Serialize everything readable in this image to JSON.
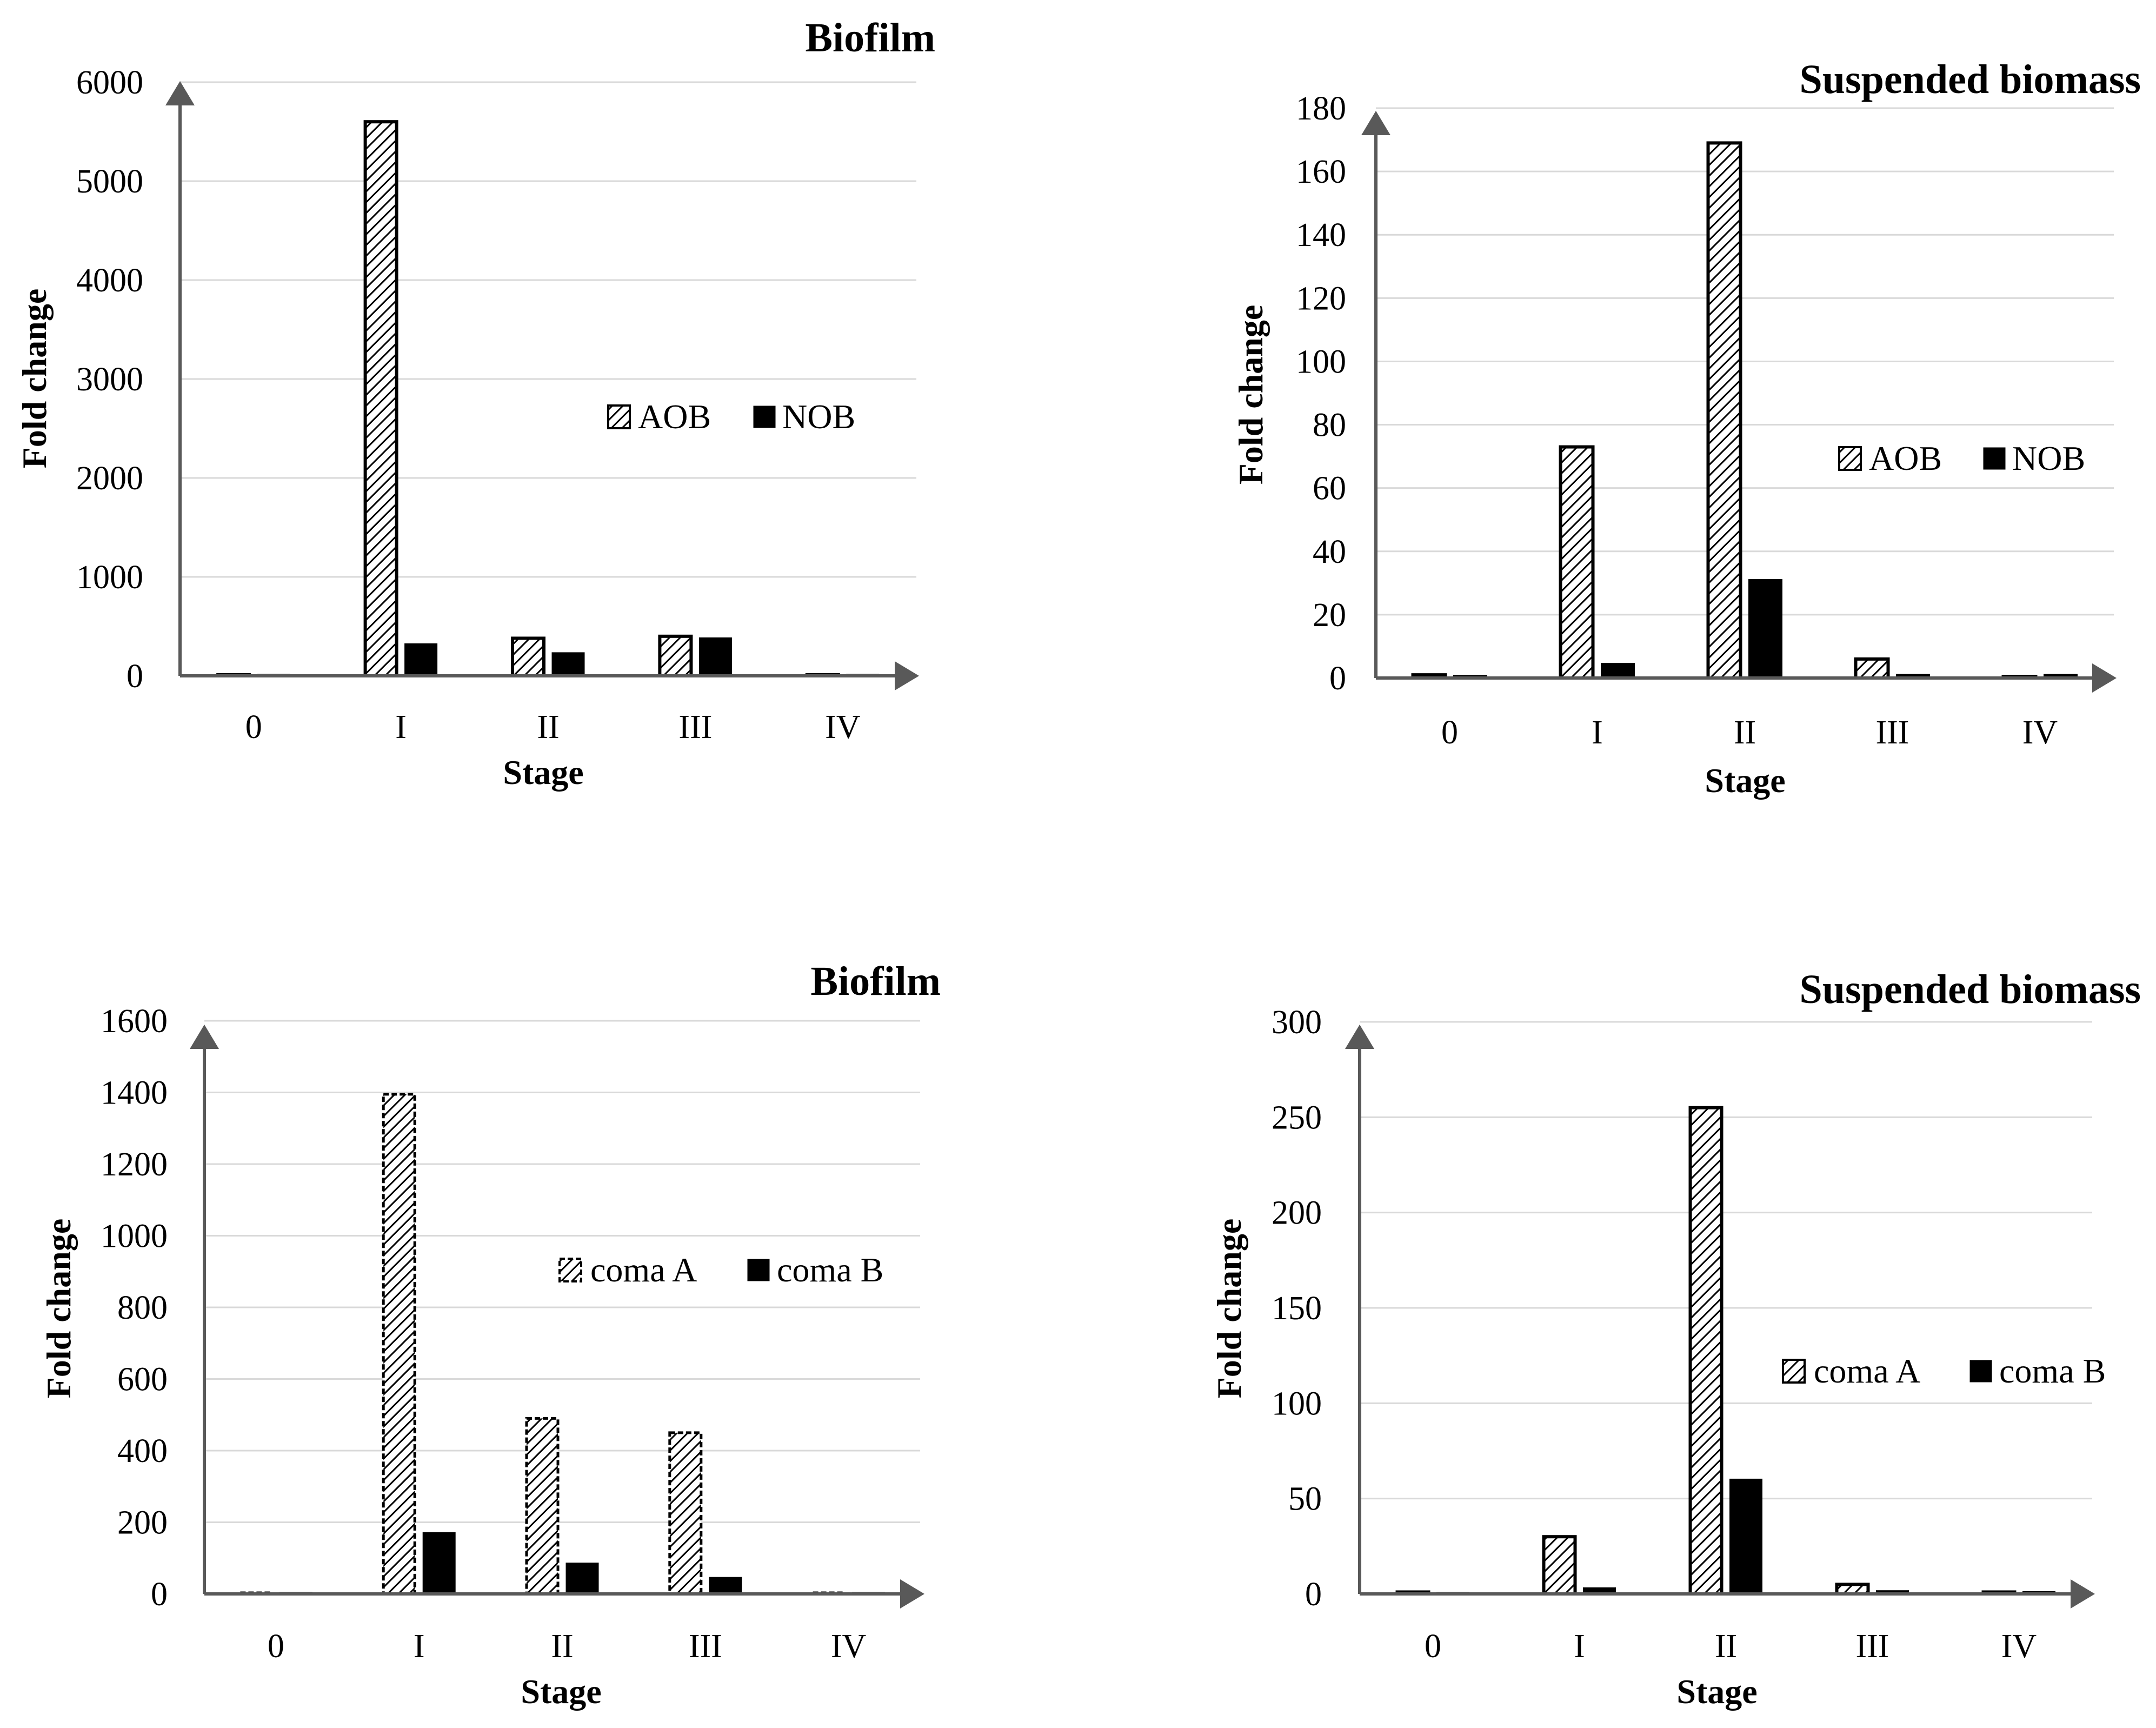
{
  "chart_data": [
    {
      "type": "bar",
      "title": "Biofilm",
      "xlabel": "Stage",
      "ylabel": "Fold change",
      "categories": [
        "0",
        "I",
        "II",
        "III",
        "IV"
      ],
      "ylim": [
        0,
        6000
      ],
      "yticks": [
        0,
        1000,
        2000,
        3000,
        4000,
        5000,
        6000
      ],
      "legend_position": "right-middle",
      "hatch_style": "solid-border",
      "series": [
        {
          "name": "AOB",
          "style": "hatched",
          "values": [
            1,
            5600,
            380,
            400,
            1
          ]
        },
        {
          "name": "NOB",
          "style": "solid",
          "values": [
            1,
            320,
            230,
            380,
            1
          ]
        }
      ]
    },
    {
      "type": "bar",
      "title": "Suspended biomass",
      "xlabel": "Stage",
      "ylabel": "Fold change",
      "categories": [
        "0",
        "I",
        "II",
        "III",
        "IV"
      ],
      "ylim": [
        0,
        180
      ],
      "yticks": [
        0,
        20,
        40,
        60,
        80,
        100,
        120,
        140,
        160,
        180
      ],
      "legend_position": "right-middle",
      "hatch_style": "solid-border",
      "series": [
        {
          "name": "AOB",
          "style": "hatched",
          "values": [
            1,
            73,
            169,
            6,
            0.5
          ]
        },
        {
          "name": "NOB",
          "style": "solid",
          "values": [
            0.7,
            4.5,
            31,
            1,
            1
          ]
        }
      ]
    },
    {
      "type": "bar",
      "title": "Biofilm",
      "xlabel": "Stage",
      "ylabel": "Fold change",
      "categories": [
        "0",
        "I",
        "II",
        "III",
        "IV"
      ],
      "ylim": [
        0,
        1600
      ],
      "yticks": [
        0,
        200,
        400,
        600,
        800,
        1000,
        1200,
        1400,
        1600
      ],
      "legend_position": "right-middle",
      "hatch_style": "dashed-border",
      "series": [
        {
          "name": "coma A",
          "style": "hatched",
          "values": [
            1,
            1395,
            490,
            450,
            1
          ]
        },
        {
          "name": "coma B",
          "style": "solid",
          "values": [
            0.5,
            170,
            85,
            45,
            0.5
          ]
        }
      ]
    },
    {
      "type": "bar",
      "title": "Suspended biomass",
      "xlabel": "Stage",
      "ylabel": "Fold change",
      "categories": [
        "0",
        "I",
        "II",
        "III",
        "IV"
      ],
      "ylim": [
        0,
        300
      ],
      "yticks": [
        0,
        50,
        100,
        150,
        200,
        250,
        300
      ],
      "legend_position": "right-middle",
      "hatch_style": "solid-border",
      "series": [
        {
          "name": "coma A",
          "style": "hatched",
          "values": [
            1,
            30,
            255,
            5,
            1
          ]
        },
        {
          "name": "coma B",
          "style": "solid",
          "values": [
            0.5,
            3,
            60,
            1.5,
            1
          ]
        }
      ]
    }
  ]
}
